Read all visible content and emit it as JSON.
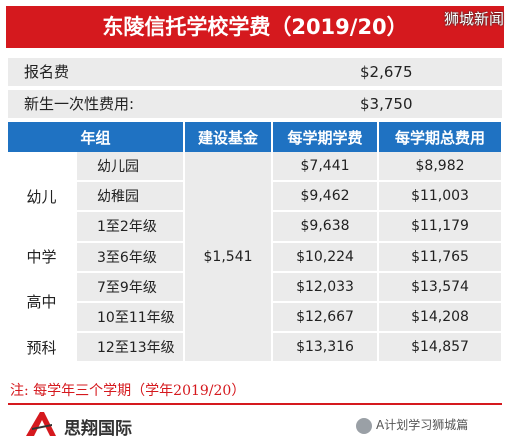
{
  "title": "东陵信托学校学费（2019/20）",
  "watermark_top": "狮城新闻",
  "fees": {
    "registration_label": "报名费",
    "registration_value": "$2,675",
    "onetime_label": "新生一次性费用:",
    "onetime_value": "$3,750"
  },
  "table": {
    "headers": [
      "年组",
      "建设基金",
      "每学期学费",
      "每学期总费用"
    ],
    "building_fund": "$1,541",
    "stages": {
      "kindergarten": "幼儿",
      "middle": "中学",
      "high": "高中",
      "prep": "预科"
    },
    "rows": [
      {
        "grade": "幼儿园",
        "tuition": "$7,441",
        "total": "$8,982"
      },
      {
        "grade": "幼稚园",
        "tuition": "$9,462",
        "total": "$11,003"
      },
      {
        "grade": "1至2年级",
        "tuition": "$9,638",
        "total": "$11,179"
      },
      {
        "grade": "3至6年级",
        "tuition": "$10,224",
        "total": "$11,765"
      },
      {
        "grade": "7至9年级",
        "tuition": "$12,033",
        "total": "$13,574"
      },
      {
        "grade": "10至11年级",
        "tuition": "$12,667",
        "total": "$14,208"
      },
      {
        "grade": "12至13年级",
        "tuition": "$13,316",
        "total": "$14,857"
      }
    ]
  },
  "note": "注: 每学年三个学期（学年2019/20）",
  "footer": {
    "brand": "思翔国际",
    "wechat": "A计划学习狮城篇"
  },
  "colors": {
    "accent_red": "#d5191e",
    "header_blue": "#1f72c2",
    "row_gray": "#ebebeb"
  }
}
